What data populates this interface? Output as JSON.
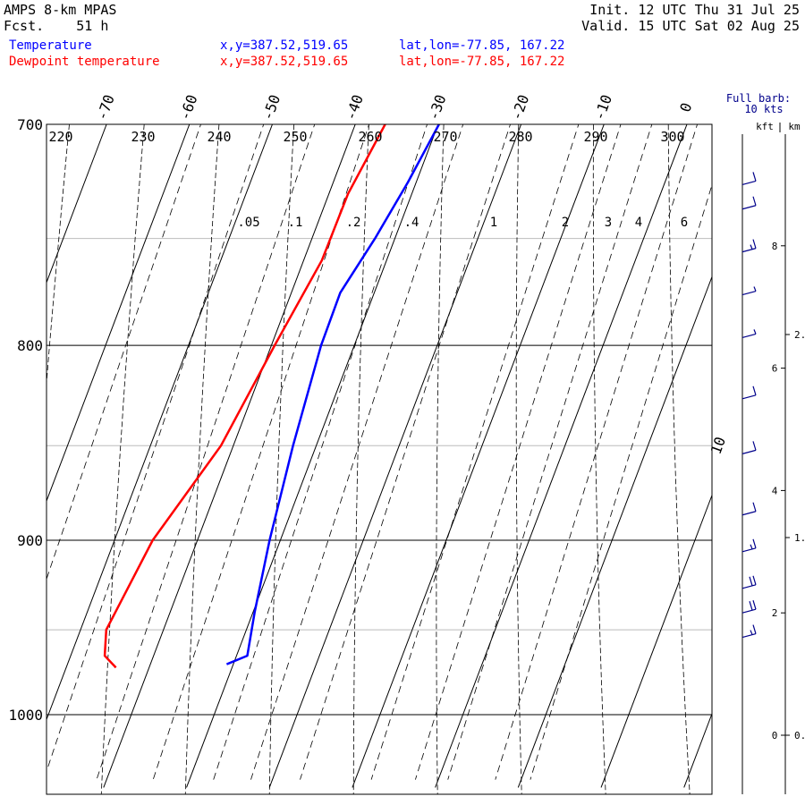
{
  "header": {
    "model": "AMPS 8-km MPAS",
    "forecast": "Fcst.    51 h",
    "init": "Init. 12 UTC Thu 31 Jul 25",
    "valid": "Valid. 15 UTC Sat 02 Aug 25"
  },
  "legend": [
    {
      "label": "Temperature",
      "xy": "x,y=387.52,519.65",
      "latlon": "lat,lon=-77.85, 167.22",
      "color": "#0000ff"
    },
    {
      "label": "Dewpoint temperature",
      "xy": "x,y=387.52,519.65",
      "latlon": "lat,lon=-77.85, 167.22",
      "color": "#ff0000"
    }
  ],
  "barb_key": {
    "line1": "Full barb:",
    "line2": "10 kts"
  },
  "height_units": {
    "kft": "kft",
    "km": "km"
  },
  "chart_data": {
    "type": "line",
    "chart_kind": "skew-T log-p sounding",
    "y_axis": {
      "quantity": "pressure (hPa)",
      "scale": "log",
      "range": [
        1045,
        700
      ],
      "ticks": [
        700,
        800,
        900,
        1000
      ]
    },
    "x_axis": {
      "quantity": "temperature (°C)",
      "skewed": true,
      "ticks": [
        -70,
        -60,
        -50,
        -40,
        -30,
        -20,
        -10,
        0
      ]
    },
    "extra_isotherm_label": "10",
    "dry_adiabats_K": [
      220,
      230,
      240,
      250,
      260,
      270,
      280,
      290,
      300
    ],
    "mixing_ratio_labels": [
      ".05",
      ".1",
      ".2",
      ".4",
      "1",
      "2",
      "3",
      "4",
      "6"
    ],
    "reference_pressures": [
      750,
      850,
      950
    ],
    "grid": true,
    "series": [
      {
        "name": "Temperature",
        "color": "#0000ff",
        "points": [
          [
            700,
            -29.9
          ],
          [
            725,
            -31.0
          ],
          [
            750,
            -32.4
          ],
          [
            775,
            -34.1
          ],
          [
            800,
            -34.0
          ],
          [
            850,
            -32.8
          ],
          [
            900,
            -31.3
          ],
          [
            940,
            -29.8
          ],
          [
            965,
            -28.7
          ],
          [
            970,
            -30.8
          ]
        ]
      },
      {
        "name": "Dewpoint temperature",
        "color": "#ff0000",
        "points": [
          [
            700,
            -36.4
          ],
          [
            730,
            -37.7
          ],
          [
            760,
            -37.8
          ],
          [
            800,
            -39.6
          ],
          [
            850,
            -41.5
          ],
          [
            900,
            -45.4
          ],
          [
            950,
            -46.9
          ],
          [
            965,
            -45.9
          ],
          [
            972,
            -44.0
          ]
        ]
      }
    ],
    "wind_profile": {
      "height_ticks_kft": [
        "8",
        "6",
        "4",
        "2",
        "0"
      ],
      "height_ticks_km": [
        "2.",
        "1.",
        "0."
      ],
      "barbs": [
        {
          "height_kft": 9.0,
          "speed_kts": 10
        },
        {
          "height_kft": 8.6,
          "speed_kts": 10
        },
        {
          "height_kft": 7.9,
          "speed_kts": 15
        },
        {
          "height_kft": 7.2,
          "speed_kts": 5
        },
        {
          "height_kft": 6.5,
          "speed_kts": 5
        },
        {
          "height_kft": 5.5,
          "speed_kts": 10
        },
        {
          "height_kft": 4.6,
          "speed_kts": 10
        },
        {
          "height_kft": 3.6,
          "speed_kts": 10
        },
        {
          "height_kft": 3.0,
          "speed_kts": 15
        },
        {
          "height_kft": 2.4,
          "speed_kts": 20
        },
        {
          "height_kft": 2.0,
          "speed_kts": 20
        },
        {
          "height_kft": 1.6,
          "speed_kts": 15
        }
      ]
    }
  }
}
